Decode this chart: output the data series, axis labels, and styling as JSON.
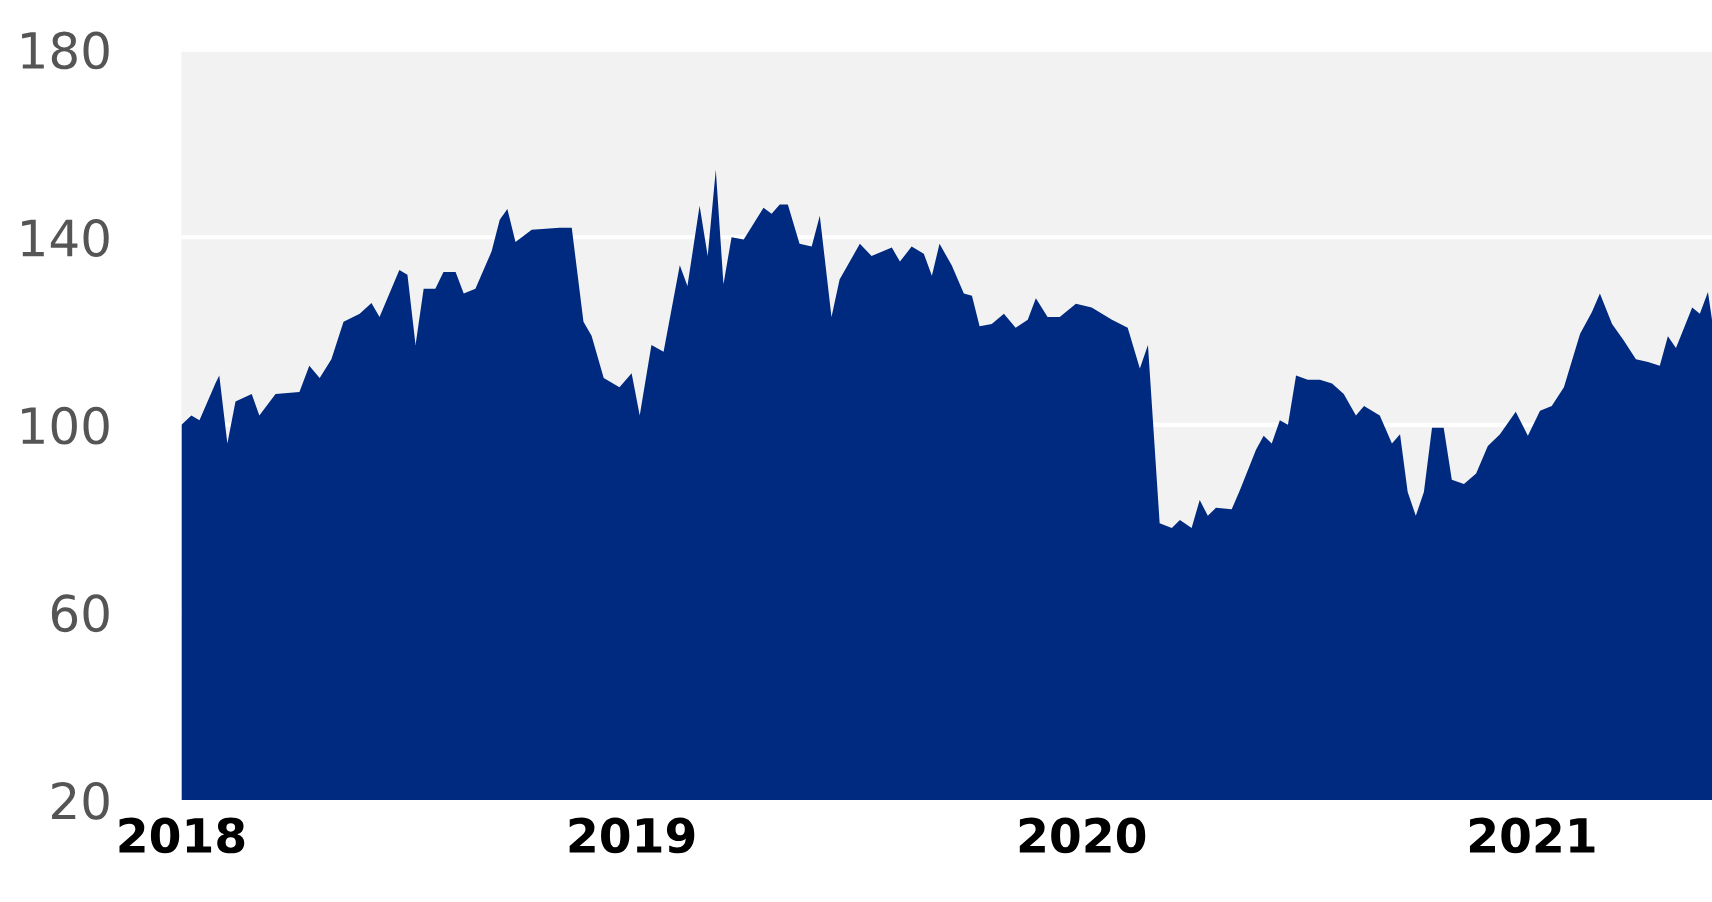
{
  "chart_data": {
    "type": "area",
    "x": [
      2018.0,
      2018.022,
      2018.04,
      2018.076,
      2018.084,
      2018.102,
      2018.12,
      2018.156,
      2018.173,
      2018.209,
      2018.262,
      2018.284,
      2018.307,
      2018.333,
      2018.36,
      2018.396,
      2018.422,
      2018.44,
      2018.484,
      2018.502,
      2018.52,
      2018.538,
      2018.564,
      2018.582,
      2018.609,
      2018.627,
      2018.653,
      2018.689,
      2018.707,
      2018.724,
      2018.742,
      2018.778,
      2018.84,
      2018.867,
      2018.893,
      2018.911,
      2018.938,
      2018.973,
      2019.0,
      2019.018,
      2019.044,
      2019.071,
      2019.107,
      2019.124,
      2019.151,
      2019.169,
      2019.187,
      2019.204,
      2019.222,
      2019.249,
      2019.293,
      2019.311,
      2019.329,
      2019.347,
      2019.373,
      2019.4,
      2019.418,
      2019.444,
      2019.462,
      2019.507,
      2019.533,
      2019.578,
      2019.596,
      2019.622,
      2019.649,
      2019.667,
      2019.684,
      2019.711,
      2019.738,
      2019.756,
      2019.773,
      2019.8,
      2019.827,
      2019.853,
      2019.88,
      2019.898,
      2019.924,
      2019.951,
      2019.987,
      2020.022,
      2020.067,
      2020.102,
      2020.129,
      2020.147,
      2020.173,
      2020.2,
      2020.218,
      2020.244,
      2020.262,
      2020.28,
      2020.298,
      2020.333,
      2020.351,
      2020.387,
      2020.404,
      2020.422,
      2020.44,
      2020.458,
      2020.476,
      2020.502,
      2020.529,
      2020.556,
      2020.582,
      2020.609,
      2020.627,
      2020.662,
      2020.689,
      2020.707,
      2020.724,
      2020.742,
      2020.76,
      2020.778,
      2020.804,
      2020.822,
      2020.849,
      2020.876,
      2020.902,
      2020.929,
      2020.964,
      2020.991,
      2021.018,
      2021.044,
      2021.071,
      2021.107,
      2021.133,
      2021.151,
      2021.178,
      2021.204,
      2021.231,
      2021.258,
      2021.284,
      2021.302,
      2021.32,
      2021.356,
      2021.373,
      2021.391,
      2021.4
    ],
    "series": [
      {
        "color": "#002a7f",
        "values": [
          100,
          102,
          101,
          109,
          110.5,
          96,
          105,
          106.6,
          102,
          106.6,
          107,
          112.6,
          110,
          114,
          122,
          123.7,
          126,
          123,
          133,
          132,
          117,
          129,
          129,
          132.6,
          132.6,
          128,
          129,
          137,
          143.7,
          146,
          139,
          141.6,
          142,
          142,
          122,
          119,
          110,
          108,
          111,
          102,
          117,
          115.6,
          134,
          129.6,
          146.7,
          136,
          154.4,
          130,
          140,
          139.5,
          146.3,
          145,
          147,
          147,
          138.6,
          138,
          144.6,
          123,
          131,
          138.6,
          136,
          137.8,
          134.8,
          138,
          136.5,
          131.8,
          138.6,
          134,
          128,
          127.5,
          121,
          121.5,
          123.7,
          120.7,
          122.4,
          127,
          123,
          123,
          125.8,
          125,
          122.4,
          120.7,
          112,
          117,
          79,
          78,
          79.7,
          78,
          84,
          80.6,
          82.3,
          82,
          86,
          94.7,
          97.7,
          96,
          101,
          100,
          110.5,
          109.6,
          109.6,
          108.8,
          106.6,
          102,
          104,
          102,
          96,
          98,
          85.7,
          80.6,
          85.7,
          99.4,
          99.4,
          88.3,
          87.4,
          89.6,
          95.5,
          98,
          102.8,
          97.7,
          103,
          104,
          108,
          119.4,
          124,
          128,
          121.5,
          118,
          114,
          113.4,
          112.6,
          118.9,
          116.4,
          125,
          123.7,
          128.3,
          122.4
        ]
      }
    ],
    "xlim": [
      2018,
      2021.4
    ],
    "xticks": [
      2018,
      2019,
      2020,
      2021
    ],
    "ylim": [
      20,
      180
    ],
    "yticks": [
      20,
      60,
      100,
      140,
      180
    ],
    "grid": "y"
  }
}
